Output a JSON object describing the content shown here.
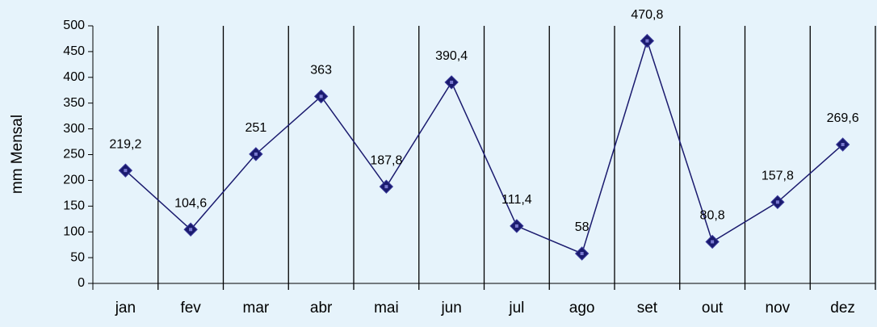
{
  "chart_data": {
    "type": "line",
    "y_label": "mm Mensal",
    "categories": [
      "jan",
      "fev",
      "mar",
      "abr",
      "mai",
      "jun",
      "jul",
      "ago",
      "set",
      "out",
      "nov",
      "dez"
    ],
    "values": [
      219.2,
      104.6,
      251,
      363,
      187.8,
      390.4,
      111.4,
      58,
      470.8,
      80.8,
      157.8,
      269.6
    ],
    "value_labels": [
      "219,2",
      "104,6",
      "251",
      "363",
      "187,8",
      "390,4",
      "111,4",
      "58",
      "470,8",
      "80,8",
      "157,8",
      "269,6"
    ],
    "color": "#1a1a6e",
    "ylim": [
      0,
      500
    ],
    "yticks": [
      0,
      50,
      100,
      150,
      200,
      250,
      300,
      350,
      400,
      450,
      500
    ],
    "grid": false
  }
}
